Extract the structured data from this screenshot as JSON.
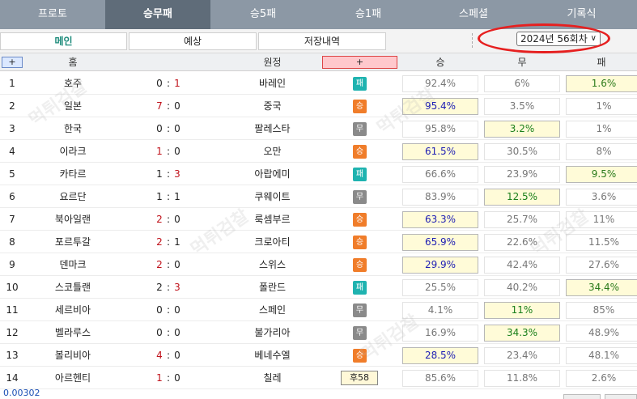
{
  "topnav": {
    "tabs": [
      {
        "label": "프로토",
        "active": false
      },
      {
        "label": "승무패",
        "active": true
      },
      {
        "label": "승5패",
        "active": false
      },
      {
        "label": "승1패",
        "active": false
      },
      {
        "label": "스페셜",
        "active": false
      },
      {
        "label": "기록식",
        "active": false
      }
    ]
  },
  "subnav": {
    "tabs": [
      {
        "label": "메인",
        "active": true
      },
      {
        "label": "예상",
        "active": false
      },
      {
        "label": "저장내역",
        "active": false
      }
    ],
    "round_select": "2024년 56회차"
  },
  "table": {
    "headers": {
      "expand": "+",
      "home": "홈",
      "away": "원정",
      "add": "+",
      "win": "승",
      "draw": "무",
      "lose": "패"
    },
    "rows": [
      {
        "no": "1",
        "home": "호주",
        "hs": "0",
        "as": "1",
        "away": "바레인",
        "result": "패",
        "rtype": "lose",
        "win": "92.4%",
        "draw": "6%",
        "lose": "1.6%",
        "hl": "lose"
      },
      {
        "no": "2",
        "home": "일본",
        "hs": "7",
        "as": "0",
        "away": "중국",
        "result": "승",
        "rtype": "win",
        "win": "95.4%",
        "draw": "3.5%",
        "lose": "1%",
        "hl": "win"
      },
      {
        "no": "3",
        "home": "한국",
        "hs": "0",
        "as": "0",
        "away": "팔레스타",
        "result": "무",
        "rtype": "draw",
        "win": "95.8%",
        "draw": "3.2%",
        "lose": "1%",
        "hl": "draw"
      },
      {
        "no": "4",
        "home": "이라크",
        "hs": "1",
        "as": "0",
        "away": "오만",
        "result": "승",
        "rtype": "win",
        "win": "61.5%",
        "draw": "30.5%",
        "lose": "8%",
        "hl": "win"
      },
      {
        "no": "5",
        "home": "카타르",
        "hs": "1",
        "as": "3",
        "away": "아랍에미",
        "result": "패",
        "rtype": "lose",
        "win": "66.6%",
        "draw": "23.9%",
        "lose": "9.5%",
        "hl": "lose"
      },
      {
        "no": "6",
        "home": "요르단",
        "hs": "1",
        "as": "1",
        "away": "쿠웨이트",
        "result": "무",
        "rtype": "draw",
        "win": "83.9%",
        "draw": "12.5%",
        "lose": "3.6%",
        "hl": "draw"
      },
      {
        "no": "7",
        "home": "북아일랜",
        "hs": "2",
        "as": "0",
        "away": "룩셈부르",
        "result": "승",
        "rtype": "win",
        "win": "63.3%",
        "draw": "25.7%",
        "lose": "11%",
        "hl": "win"
      },
      {
        "no": "8",
        "home": "포르투갈",
        "hs": "2",
        "as": "1",
        "away": "크로아티",
        "result": "승",
        "rtype": "win",
        "win": "65.9%",
        "draw": "22.6%",
        "lose": "11.5%",
        "hl": "win"
      },
      {
        "no": "9",
        "home": "덴마크",
        "hs": "2",
        "as": "0",
        "away": "스위스",
        "result": "승",
        "rtype": "win",
        "win": "29.9%",
        "draw": "42.4%",
        "lose": "27.6%",
        "hl": "win"
      },
      {
        "no": "10",
        "home": "스코틀랜",
        "hs": "2",
        "as": "3",
        "away": "폴란드",
        "result": "패",
        "rtype": "lose",
        "win": "25.5%",
        "draw": "40.2%",
        "lose": "34.4%",
        "hl": "lose"
      },
      {
        "no": "11",
        "home": "세르비아",
        "hs": "0",
        "as": "0",
        "away": "스페인",
        "result": "무",
        "rtype": "draw",
        "win": "4.1%",
        "draw": "11%",
        "lose": "85%",
        "hl": "draw"
      },
      {
        "no": "12",
        "home": "벨라루스",
        "hs": "0",
        "as": "0",
        "away": "불가리아",
        "result": "무",
        "rtype": "draw",
        "win": "16.9%",
        "draw": "34.3%",
        "lose": "48.9%",
        "hl": "draw"
      },
      {
        "no": "13",
        "home": "볼리비아",
        "hs": "4",
        "as": "0",
        "away": "베네수엘",
        "result": "승",
        "rtype": "win",
        "win": "28.5%",
        "draw": "23.4%",
        "lose": "48.1%",
        "hl": "win"
      },
      {
        "no": "14",
        "home": "아르헨티",
        "hs": "1",
        "as": "0",
        "away": "칠레",
        "result": "후58",
        "rtype": "special",
        "win": "85.6%",
        "draw": "11.8%",
        "lose": "2.6%",
        "hl": ""
      }
    ]
  },
  "footer": {
    "value": "0.00302"
  },
  "colors": {
    "nav_bg": "#8c98a5",
    "nav_active": "#5f6c79",
    "win_badge": "#f07d2a",
    "draw_badge": "#8a8a8a",
    "lose_badge": "#1fb3b0",
    "highlight": "#fffbd8",
    "score_red": "#c0121b",
    "annotation_oval": "#e62020"
  }
}
